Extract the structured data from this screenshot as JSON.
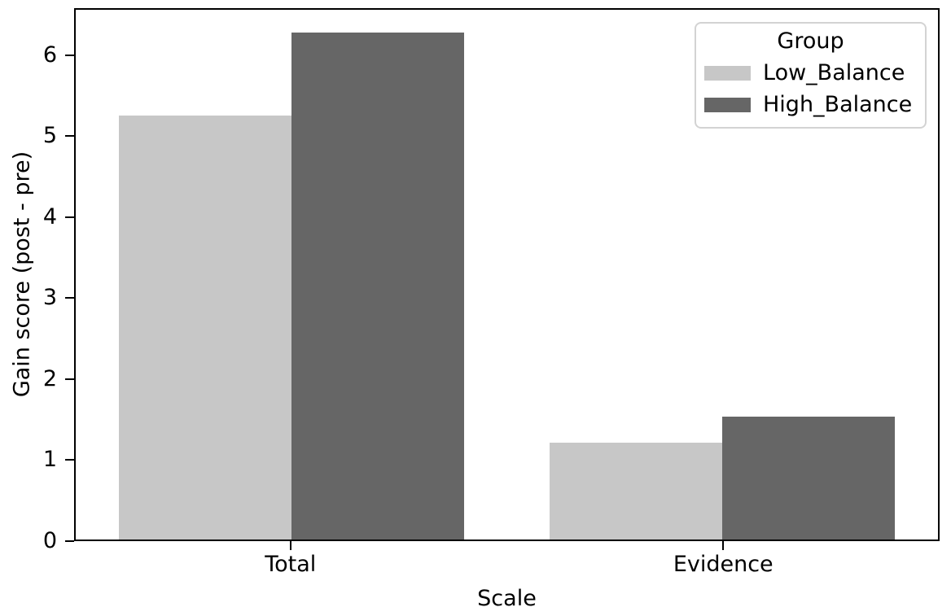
{
  "chart_data": {
    "type": "bar",
    "title": "",
    "xlabel": "Scale",
    "ylabel": "Gain score (post - pre)",
    "categories": [
      "Total",
      "Evidence"
    ],
    "series": [
      {
        "name": "Low_Balance",
        "color": "#c7c7c7",
        "values": [
          5.23,
          1.2
        ]
      },
      {
        "name": "High_Balance",
        "color": "#666666",
        "values": [
          6.26,
          1.52
        ]
      }
    ],
    "yticks": [
      0,
      1,
      2,
      3,
      4,
      5,
      6
    ],
    "ylim": [
      0,
      6.58
    ],
    "grid": false,
    "legend": {
      "title": "Group",
      "position": "upper right"
    },
    "axis_color": "#000000",
    "background_color": "#ffffff"
  }
}
